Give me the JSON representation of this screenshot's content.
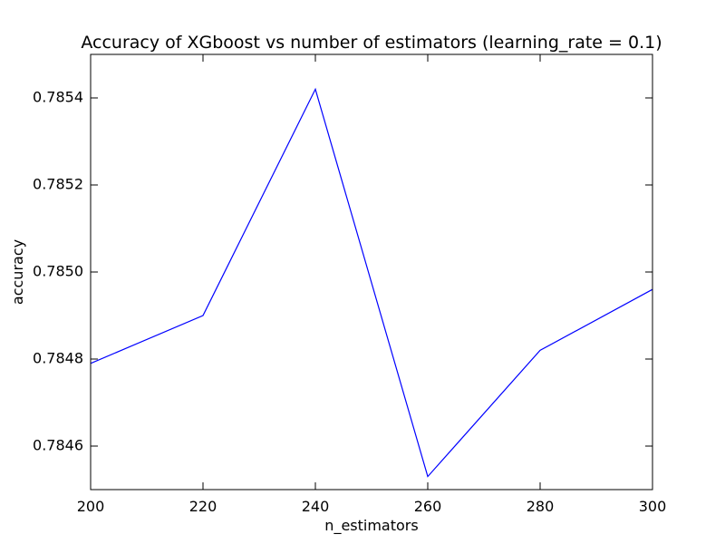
{
  "chart_data": {
    "type": "line",
    "title": "Accuracy of XGboost vs number of estimators (learning_rate = 0.1)",
    "xlabel": "n_estimators",
    "ylabel": "accuracy",
    "x": [
      200,
      220,
      240,
      260,
      280,
      300
    ],
    "series": [
      {
        "values": [
          0.78479,
          0.7849,
          0.78542,
          0.78453,
          0.78482,
          0.78496
        ],
        "color": "#0000ff"
      }
    ],
    "xlim": [
      200,
      300
    ],
    "ylim": [
      0.7845,
      0.7855
    ],
    "xticks": [
      200,
      220,
      240,
      260,
      280,
      300
    ],
    "xtick_labels": [
      "200",
      "220",
      "240",
      "260",
      "280",
      "300"
    ],
    "yticks": [
      0.7846,
      0.7848,
      0.785,
      0.7852,
      0.7854
    ],
    "ytick_labels": [
      "0.7846",
      "0.7848",
      "0.7850",
      "0.7852",
      "0.7854"
    ],
    "grid": false,
    "legend": false
  }
}
